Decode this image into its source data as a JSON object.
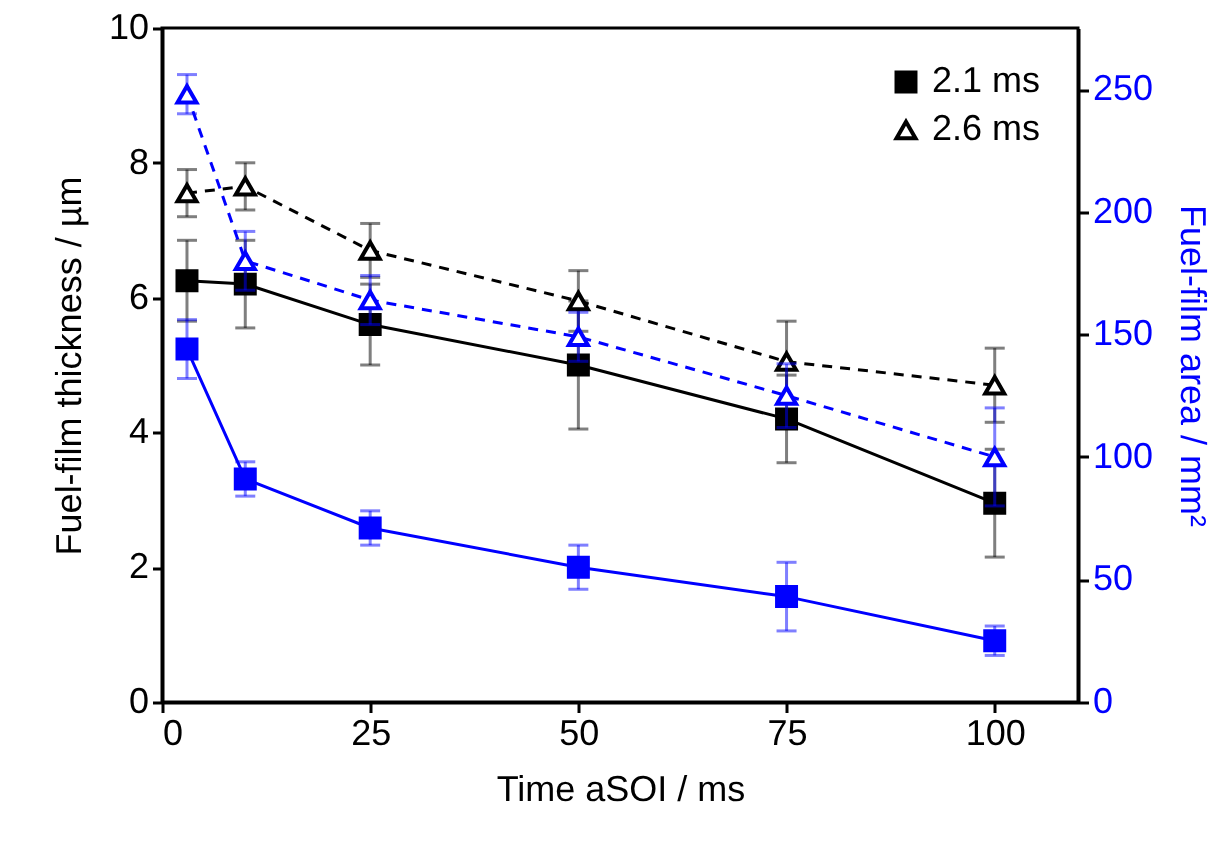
{
  "chart_data": {
    "type": "line",
    "xlabel": "Time aSOI  /  ms",
    "ylabel": "Fuel-film thickness  /  µm",
    "y2label": "Fuel-film area  /  mm²",
    "x": [
      3,
      10,
      25,
      50,
      75,
      100
    ],
    "xlim": [
      0,
      110
    ],
    "xticks": [
      0,
      25,
      50,
      75,
      100
    ],
    "ylim": [
      0,
      10
    ],
    "yticks": [
      0,
      2,
      4,
      6,
      8,
      10
    ],
    "y2lim": [
      0,
      275
    ],
    "y2ticks": [
      0,
      50,
      100,
      150,
      200,
      250
    ],
    "grid": false,
    "legend": "top right",
    "series": [
      {
        "name": "2.1 ms",
        "color": "#000000",
        "marker": "square",
        "line_style": "solid",
        "values": [
          6.25,
          6.2,
          5.6,
          5.0,
          4.2,
          2.95
        ],
        "errors": [
          0.6,
          0.65,
          0.6,
          0.95,
          0.65,
          0.8
        ]
      },
      {
        "name": "2.6 ms",
        "color": "#000000",
        "marker": "triangle",
        "line_style": "dashed",
        "values": [
          7.55,
          7.65,
          6.7,
          5.95,
          5.05,
          4.7
        ],
        "errors": [
          0.35,
          0.35,
          0.4,
          0.45,
          0.6,
          0.55
        ]
      },
      {
        "color": "#0000ff",
        "marker": "square",
        "line_style": "solid",
        "axis": "y2",
        "values": [
          144,
          91,
          71,
          55,
          43,
          25
        ],
        "errors": [
          12,
          7,
          7,
          9,
          14,
          6
        ]
      },
      {
        "color": "#0000ff",
        "marker": "triangle",
        "line_style": "dashed",
        "axis": "y2",
        "values": [
          248,
          180,
          164,
          149,
          125,
          100
        ],
        "errors": [
          8,
          12,
          10,
          10,
          13,
          20
        ]
      }
    ]
  }
}
